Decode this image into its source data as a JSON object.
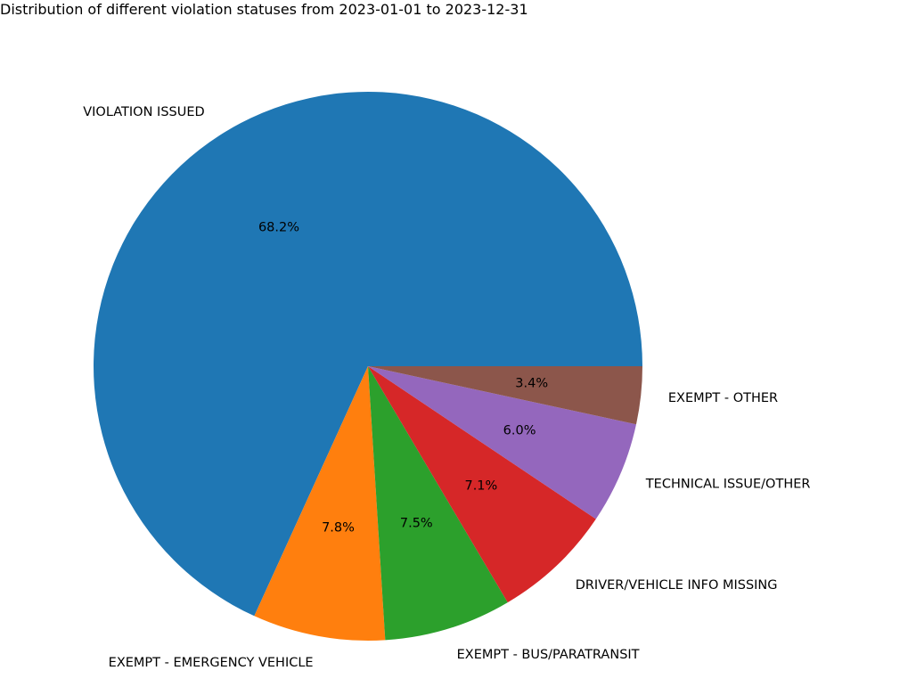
{
  "chart_data": {
    "type": "pie",
    "title": "Distribution of different violation statuses from 2023-01-01 to 2023-12-31",
    "slices": [
      {
        "label": "VIOLATION ISSUED",
        "value": 68.2,
        "pct_label": "68.2%",
        "color": "#1f77b4"
      },
      {
        "label": "EXEMPT - EMERGENCY VEHICLE",
        "value": 7.8,
        "pct_label": "7.8%",
        "color": "#ff7f0e"
      },
      {
        "label": "EXEMPT - BUS/PARATRANSIT",
        "value": 7.5,
        "pct_label": "7.5%",
        "color": "#2ca02c"
      },
      {
        "label": "DRIVER/VEHICLE INFO MISSING",
        "value": 7.1,
        "pct_label": "7.1%",
        "color": "#d62728"
      },
      {
        "label": "TECHNICAL ISSUE/OTHER",
        "value": 6.0,
        "pct_label": "6.0%",
        "color": "#9467bd"
      },
      {
        "label": "EXEMPT - OTHER",
        "value": 3.4,
        "pct_label": "3.4%",
        "color": "#8c564b"
      }
    ]
  }
}
